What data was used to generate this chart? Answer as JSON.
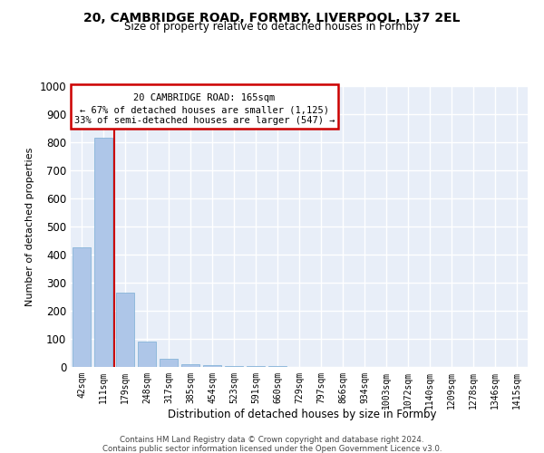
{
  "title_line1": "20, CAMBRIDGE ROAD, FORMBY, LIVERPOOL, L37 2EL",
  "title_line2": "Size of property relative to detached houses in Formby",
  "xlabel": "Distribution of detached houses by size in Formby",
  "ylabel": "Number of detached properties",
  "annotation_line1": "20 CAMBRIDGE ROAD: 165sqm",
  "annotation_line2": "← 67% of detached houses are smaller (1,125)",
  "annotation_line3": "33% of semi-detached houses are larger (547) →",
  "categories": [
    "42sqm",
    "111sqm",
    "179sqm",
    "248sqm",
    "317sqm",
    "385sqm",
    "454sqm",
    "523sqm",
    "591sqm",
    "660sqm",
    "729sqm",
    "797sqm",
    "866sqm",
    "934sqm",
    "1003sqm",
    "1072sqm",
    "1140sqm",
    "1209sqm",
    "1278sqm",
    "1346sqm",
    "1415sqm"
  ],
  "values": [
    425,
    815,
    265,
    90,
    28,
    10,
    5,
    3,
    2,
    2,
    1,
    1,
    1,
    1,
    1,
    0,
    0,
    0,
    0,
    0,
    0
  ],
  "bar_color": "#aec6e8",
  "bar_edge_color": "#7aadd4",
  "vline_color": "#cc0000",
  "annotation_box_color": "#cc0000",
  "background_color": "#e8eef8",
  "grid_color": "#ffffff",
  "ylim": [
    0,
    1000
  ],
  "yticks": [
    0,
    100,
    200,
    300,
    400,
    500,
    600,
    700,
    800,
    900,
    1000
  ],
  "footnote1": "Contains HM Land Registry data © Crown copyright and database right 2024.",
  "footnote2": "Contains public sector information licensed under the Open Government Licence v3.0."
}
